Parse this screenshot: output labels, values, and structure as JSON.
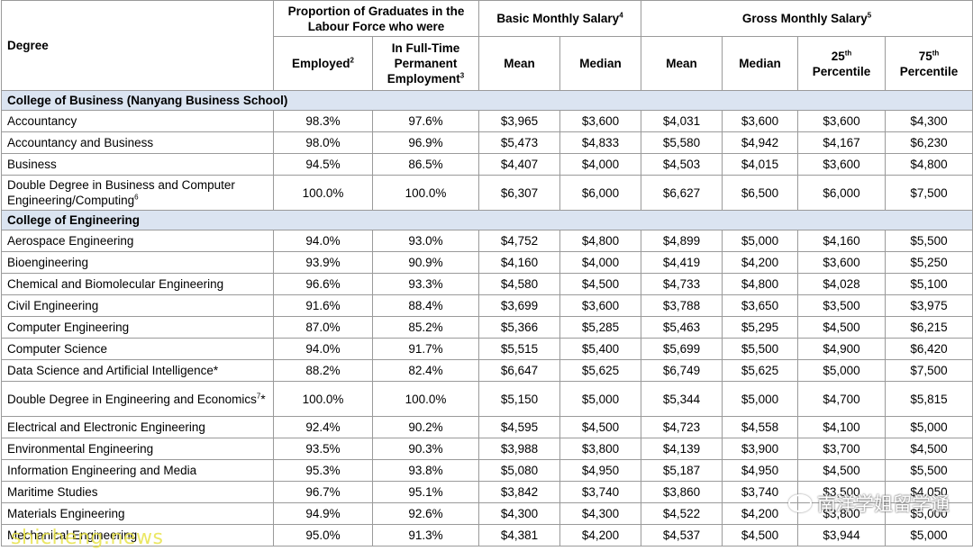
{
  "header": {
    "degree": "Degree",
    "proportion_group": "Proportion of Graduates in the Labour Force who were",
    "basic_group": "Basic Monthly Salary",
    "basic_note": "4",
    "gross_group": "Gross Monthly Salary",
    "gross_note": "5",
    "employed": "Employed",
    "employed_note": "2",
    "fulltime": "In Full-Time Permanent Employment",
    "fulltime_note": "3",
    "mean": "Mean",
    "median": "Median",
    "p25_num": "25",
    "p25_suffix": "th",
    "p75_num": "75",
    "p75_suffix": "th",
    "percentile": "Percentile"
  },
  "colleges": [
    {
      "name": "College of Business (Nanyang Business School)",
      "rows": [
        {
          "degree": "Accountancy",
          "note": "",
          "employed": "98.3%",
          "fulltime": "97.6%",
          "basic_mean": "$3,965",
          "basic_median": "$3,600",
          "gross_mean": "$4,031",
          "gross_median": "$3,600",
          "p25": "$3,600",
          "p75": "$4,300"
        },
        {
          "degree": "Accountancy and Business",
          "note": "",
          "employed": "98.0%",
          "fulltime": "96.9%",
          "basic_mean": "$5,473",
          "basic_median": "$4,833",
          "gross_mean": "$5,580",
          "gross_median": "$4,942",
          "p25": "$4,167",
          "p75": "$6,230"
        },
        {
          "degree": "Business",
          "note": "",
          "employed": "94.5%",
          "fulltime": "86.5%",
          "basic_mean": "$4,407",
          "basic_median": "$4,000",
          "gross_mean": "$4,503",
          "gross_median": "$4,015",
          "p25": "$3,600",
          "p75": "$4,800"
        },
        {
          "degree": "Double Degree in Business and Computer Engineering/Computing",
          "note": "6",
          "employed": "100.0%",
          "fulltime": "100.0%",
          "basic_mean": "$6,307",
          "basic_median": "$6,000",
          "gross_mean": "$6,627",
          "gross_median": "$6,500",
          "p25": "$6,000",
          "p75": "$7,500"
        }
      ]
    },
    {
      "name": "College of Engineering",
      "rows": [
        {
          "degree": "Aerospace Engineering",
          "note": "",
          "employed": "94.0%",
          "fulltime": "93.0%",
          "basic_mean": "$4,752",
          "basic_median": "$4,800",
          "gross_mean": "$4,899",
          "gross_median": "$5,000",
          "p25": "$4,160",
          "p75": "$5,500"
        },
        {
          "degree": "Bioengineering",
          "note": "",
          "employed": "93.9%",
          "fulltime": "90.9%",
          "basic_mean": "$4,160",
          "basic_median": "$4,000",
          "gross_mean": "$4,419",
          "gross_median": "$4,200",
          "p25": "$3,600",
          "p75": "$5,250"
        },
        {
          "degree": "Chemical and Biomolecular Engineering",
          "note": "",
          "employed": "96.6%",
          "fulltime": "93.3%",
          "basic_mean": "$4,580",
          "basic_median": "$4,500",
          "gross_mean": "$4,733",
          "gross_median": "$4,800",
          "p25": "$4,028",
          "p75": "$5,100"
        },
        {
          "degree": "Civil Engineering",
          "note": "",
          "employed": "91.6%",
          "fulltime": "88.4%",
          "basic_mean": "$3,699",
          "basic_median": "$3,600",
          "gross_mean": "$3,788",
          "gross_median": "$3,650",
          "p25": "$3,500",
          "p75": "$3,975"
        },
        {
          "degree": "Computer Engineering",
          "note": "",
          "employed": "87.0%",
          "fulltime": "85.2%",
          "basic_mean": "$5,366",
          "basic_median": "$5,285",
          "gross_mean": "$5,463",
          "gross_median": "$5,295",
          "p25": "$4,500",
          "p75": "$6,215"
        },
        {
          "degree": "Computer Science",
          "note": "",
          "employed": "94.0%",
          "fulltime": "91.7%",
          "basic_mean": "$5,515",
          "basic_median": "$5,400",
          "gross_mean": "$5,699",
          "gross_median": "$5,500",
          "p25": "$4,900",
          "p75": "$6,420"
        },
        {
          "degree": "Data Science and Artificial Intelligence*",
          "note": "",
          "employed": "88.2%",
          "fulltime": "82.4%",
          "basic_mean": "$6,647",
          "basic_median": "$5,625",
          "gross_mean": "$6,749",
          "gross_median": "$5,625",
          "p25": "$5,000",
          "p75": "$7,500"
        },
        {
          "degree": "Double Degree in Engineering and Economics",
          "note": "7",
          "suffix": "*",
          "employed": "100.0%",
          "fulltime": "100.0%",
          "basic_mean": "$5,150",
          "basic_median": "$5,000",
          "gross_mean": "$5,344",
          "gross_median": "$5,000",
          "p25": "$4,700",
          "p75": "$5,815"
        },
        {
          "degree": "Electrical and Electronic Engineering",
          "note": "",
          "employed": "92.4%",
          "fulltime": "90.2%",
          "basic_mean": "$4,595",
          "basic_median": "$4,500",
          "gross_mean": "$4,723",
          "gross_median": "$4,558",
          "p25": "$4,100",
          "p75": "$5,000"
        },
        {
          "degree": "Environmental Engineering",
          "note": "",
          "employed": "93.5%",
          "fulltime": "90.3%",
          "basic_mean": "$3,988",
          "basic_median": "$3,800",
          "gross_mean": "$4,139",
          "gross_median": "$3,900",
          "p25": "$3,700",
          "p75": "$4,500"
        },
        {
          "degree": "Information Engineering and Media",
          "note": "",
          "employed": "95.3%",
          "fulltime": "93.8%",
          "basic_mean": "$5,080",
          "basic_median": "$4,950",
          "gross_mean": "$5,187",
          "gross_median": "$4,950",
          "p25": "$4,500",
          "p75": "$5,500"
        },
        {
          "degree": "Maritime Studies",
          "note": "",
          "employed": "96.7%",
          "fulltime": "95.1%",
          "basic_mean": "$3,842",
          "basic_median": "$3,740",
          "gross_mean": "$3,860",
          "gross_median": "$3,740",
          "p25": "$3,500",
          "p75": "$4,050"
        },
        {
          "degree": "Materials Engineering",
          "note": "",
          "employed": "94.9%",
          "fulltime": "92.6%",
          "basic_mean": "$4,300",
          "basic_median": "$4,300",
          "gross_mean": "$4,522",
          "gross_median": "$4,200",
          "p25": "$3,800",
          "p75": "$5,000"
        },
        {
          "degree": "Mechanical Engineering",
          "note": "",
          "employed": "95.0%",
          "fulltime": "91.3%",
          "basic_mean": "$4,381",
          "basic_median": "$4,200",
          "gross_mean": "$4,537",
          "gross_median": "$4,500",
          "p25": "$3,944",
          "p75": "$5,000"
        }
      ]
    }
  ],
  "watermarks": {
    "site": "shicheng.news",
    "brand": "南洋学姐留学通"
  }
}
